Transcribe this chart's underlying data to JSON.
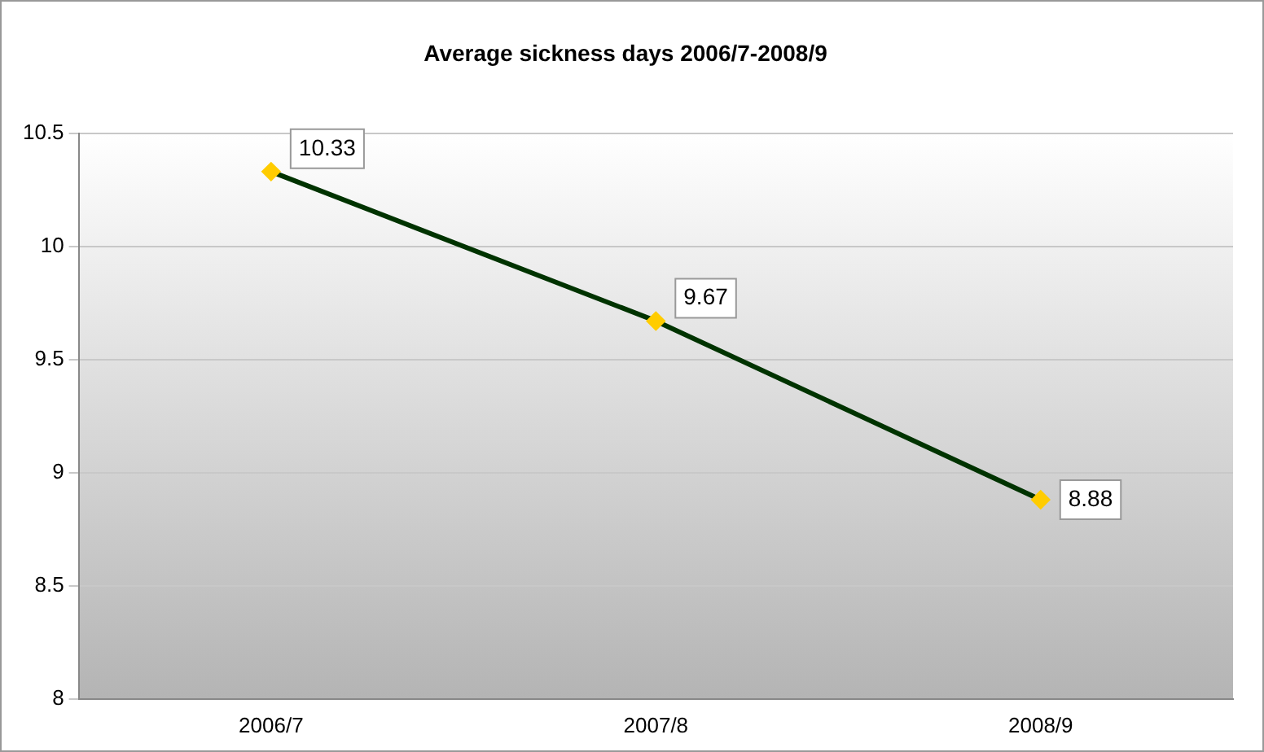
{
  "chart_data": {
    "type": "line",
    "title": "Average sickness days 2006/7-2008/9",
    "categories": [
      "2006/7",
      "2007/8",
      "2008/9"
    ],
    "series": [
      {
        "color": "#003300",
        "values": [
          10.33,
          9.67,
          8.88
        ]
      }
    ],
    "ylim": [
      8,
      10.5
    ],
    "yticks": [
      8,
      8.5,
      9,
      9.5,
      10,
      10.5
    ],
    "grid": "y",
    "legend": false,
    "marker": "diamond",
    "line_style": "solid",
    "data_labels": true
  }
}
